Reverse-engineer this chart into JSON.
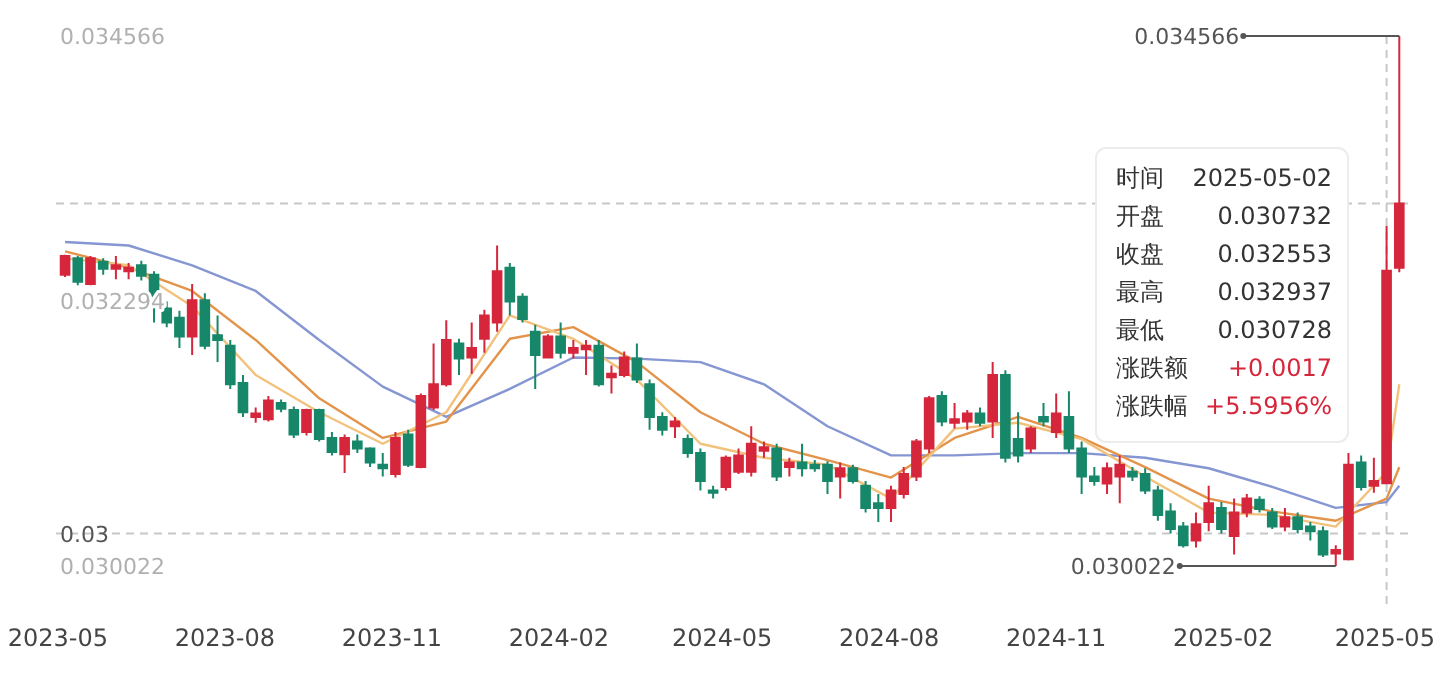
{
  "chart_data": {
    "type": "candlestick",
    "x": [
      "2023-05-05",
      "2023-05-12",
      "2023-05-19",
      "2023-05-26",
      "2023-06-02",
      "2023-06-09",
      "2023-06-16",
      "2023-06-23",
      "2023-06-30",
      "2023-07-07",
      "2023-07-14",
      "2023-07-21",
      "2023-07-28",
      "2023-08-04",
      "2023-08-11",
      "2023-08-18",
      "2023-08-25",
      "2023-09-01",
      "2023-09-08",
      "2023-09-15",
      "2023-09-22",
      "2023-09-29",
      "2023-10-06",
      "2023-10-13",
      "2023-10-20",
      "2023-10-27",
      "2023-11-03",
      "2023-11-10",
      "2023-11-17",
      "2023-11-24",
      "2023-12-01",
      "2023-12-08",
      "2023-12-15",
      "2023-12-22",
      "2023-12-29",
      "2024-01-05",
      "2024-01-12",
      "2024-01-19",
      "2024-01-26",
      "2024-02-02",
      "2024-02-09",
      "2024-02-16",
      "2024-02-23",
      "2024-03-01",
      "2024-03-08",
      "2024-03-15",
      "2024-03-22",
      "2024-03-29",
      "2024-04-05",
      "2024-04-12",
      "2024-04-19",
      "2024-04-26",
      "2024-05-03",
      "2024-05-10",
      "2024-05-17",
      "2024-05-24",
      "2024-05-31",
      "2024-06-07",
      "2024-06-14",
      "2024-06-21",
      "2024-06-28",
      "2024-07-05",
      "2024-07-12",
      "2024-07-19",
      "2024-07-26",
      "2024-08-02",
      "2024-08-09",
      "2024-08-16",
      "2024-08-23",
      "2024-08-30",
      "2024-09-06",
      "2024-09-13",
      "2024-09-20",
      "2024-09-27",
      "2024-10-04",
      "2024-10-11",
      "2024-10-18",
      "2024-10-25",
      "2024-11-01",
      "2024-11-08",
      "2024-11-15",
      "2024-11-22",
      "2024-11-29",
      "2024-12-06",
      "2024-12-13",
      "2024-12-20",
      "2024-12-27",
      "2025-01-03",
      "2025-01-10",
      "2025-01-17",
      "2025-01-24",
      "2025-01-31",
      "2025-02-07",
      "2025-02-14",
      "2025-02-21",
      "2025-02-28",
      "2025-03-07",
      "2025-03-14",
      "2025-03-21",
      "2025-03-28",
      "2025-04-04",
      "2025-04-11",
      "2025-04-18",
      "2025-04-25",
      "2025-05-02",
      "2025-05-09"
    ],
    "ohlc": [
      [
        0.03252,
        0.03269,
        0.0325,
        0.03268
      ],
      [
        0.03266,
        0.03268,
        0.03243,
        0.03246
      ],
      [
        0.03244,
        0.03268,
        0.03243,
        0.03266
      ],
      [
        0.03263,
        0.03266,
        0.03252,
        0.03257
      ],
      [
        0.03257,
        0.03268,
        0.03248,
        0.0326
      ],
      [
        0.03255,
        0.03262,
        0.03248,
        0.03258
      ],
      [
        0.0326,
        0.03264,
        0.03247,
        0.03251
      ],
      [
        0.03252,
        0.03255,
        0.03211,
        0.03225
      ],
      [
        0.03223,
        0.03229,
        0.03207,
        0.03211
      ],
      [
        0.03215,
        0.03221,
        0.03189,
        0.03199
      ],
      [
        0.03199,
        0.03244,
        0.03183,
        0.0323
      ],
      [
        0.0323,
        0.03236,
        0.03188,
        0.03191
      ],
      [
        0.032,
        0.03217,
        0.03177,
        0.03196
      ],
      [
        0.03191,
        0.03196,
        0.03154,
        0.03158
      ],
      [
        0.03159,
        0.03166,
        0.0313,
        0.03134
      ],
      [
        0.0313,
        0.03138,
        0.03125,
        0.03133
      ],
      [
        0.03128,
        0.03148,
        0.03126,
        0.03144
      ],
      [
        0.03142,
        0.03145,
        0.03134,
        0.03137
      ],
      [
        0.03136,
        0.03139,
        0.03112,
        0.03115
      ],
      [
        0.03117,
        0.03137,
        0.03114,
        0.03136
      ],
      [
        0.03136,
        0.03137,
        0.03109,
        0.03111
      ],
      [
        0.03112,
        0.03117,
        0.03097,
        0.031
      ],
      [
        0.03098,
        0.03115,
        0.03082,
        0.03112
      ],
      [
        0.03109,
        0.03115,
        0.03099,
        0.03103
      ],
      [
        0.03103,
        0.03104,
        0.03087,
        0.03091
      ],
      [
        0.03089,
        0.03099,
        0.03079,
        0.03086
      ],
      [
        0.03081,
        0.03117,
        0.03078,
        0.03112
      ],
      [
        0.03115,
        0.03119,
        0.03087,
        0.03089
      ],
      [
        0.03087,
        0.0315,
        0.03086,
        0.03148
      ],
      [
        0.03138,
        0.03193,
        0.03136,
        0.03158
      ],
      [
        0.03158,
        0.03213,
        0.03156,
        0.03196
      ],
      [
        0.03193,
        0.03197,
        0.03166,
        0.0318
      ],
      [
        0.03181,
        0.03211,
        0.03167,
        0.03189
      ],
      [
        0.03197,
        0.03222,
        0.03185,
        0.03217
      ],
      [
        0.03211,
        0.03277,
        0.03203,
        0.03255
      ],
      [
        0.03258,
        0.03262,
        0.03217,
        0.03229
      ],
      [
        0.03233,
        0.03236,
        0.03211,
        0.03214
      ],
      [
        0.03203,
        0.03209,
        0.03154,
        0.03183
      ],
      [
        0.03181,
        0.03201,
        0.0318,
        0.03199
      ],
      [
        0.03199,
        0.03211,
        0.0318,
        0.03185
      ],
      [
        0.03185,
        0.03196,
        0.0318,
        0.03189
      ],
      [
        0.03188,
        0.03196,
        0.03166,
        0.03191
      ],
      [
        0.03191,
        0.03196,
        0.03156,
        0.03158
      ],
      [
        0.03164,
        0.03174,
        0.0315,
        0.03167
      ],
      [
        0.03166,
        0.03186,
        0.03164,
        0.03181
      ],
      [
        0.0318,
        0.03193,
        0.03159,
        0.03162
      ],
      [
        0.03158,
        0.03162,
        0.03119,
        0.0313
      ],
      [
        0.0313,
        0.03134,
        0.03114,
        0.03119
      ],
      [
        0.03122,
        0.0313,
        0.03112,
        0.03126
      ],
      [
        0.03111,
        0.03115,
        0.03095,
        0.03099
      ],
      [
        0.03099,
        0.03103,
        0.03067,
        0.03075
      ],
      [
        0.03067,
        0.03071,
        0.0306,
        0.03065
      ],
      [
        0.0307,
        0.03097,
        0.03067,
        0.03095
      ],
      [
        0.03083,
        0.03103,
        0.03081,
        0.03097
      ],
      [
        0.03083,
        0.03122,
        0.03079,
        0.03107
      ],
      [
        0.03101,
        0.03109,
        0.03095,
        0.03104
      ],
      [
        0.03103,
        0.03107,
        0.03075,
        0.03079
      ],
      [
        0.03087,
        0.03095,
        0.03079,
        0.03091
      ],
      [
        0.03091,
        0.03107,
        0.03079,
        0.03086
      ],
      [
        0.03089,
        0.03093,
        0.03083,
        0.03086
      ],
      [
        0.03089,
        0.03092,
        0.03064,
        0.03075
      ],
      [
        0.03079,
        0.03091,
        0.0306,
        0.03086
      ],
      [
        0.03086,
        0.03089,
        0.03073,
        0.03075
      ],
      [
        0.03071,
        0.03075,
        0.03048,
        0.03052
      ],
      [
        0.03056,
        0.03064,
        0.0304,
        0.03052
      ],
      [
        0.03052,
        0.03071,
        0.0304,
        0.03067
      ],
      [
        0.03064,
        0.03087,
        0.0306,
        0.03081
      ],
      [
        0.03079,
        0.03111,
        0.03075,
        0.03109
      ],
      [
        0.03103,
        0.03148,
        0.03099,
        0.03146
      ],
      [
        0.03148,
        0.03152,
        0.03122,
        0.03126
      ],
      [
        0.03125,
        0.03142,
        0.0312,
        0.03128
      ],
      [
        0.03126,
        0.03136,
        0.03119,
        0.03133
      ],
      [
        0.03133,
        0.03138,
        0.03122,
        0.03125
      ],
      [
        0.03126,
        0.03177,
        0.03112,
        0.03166
      ],
      [
        0.03166,
        0.0317,
        0.03091,
        0.03095
      ],
      [
        0.03111,
        0.03134,
        0.03091,
        0.03097
      ],
      [
        0.03103,
        0.03122,
        0.03099,
        0.0312
      ],
      [
        0.0313,
        0.03142,
        0.03122,
        0.03126
      ],
      [
        0.03117,
        0.0315,
        0.03112,
        0.03133
      ],
      [
        0.0313,
        0.03152,
        0.03099,
        0.03103
      ],
      [
        0.03103,
        0.03109,
        0.03064,
        0.03079
      ],
      [
        0.03079,
        0.03087,
        0.03071,
        0.03075
      ],
      [
        0.03073,
        0.03091,
        0.03064,
        0.03086
      ],
      [
        0.03079,
        0.03097,
        0.03056,
        0.03089
      ],
      [
        0.03083,
        0.03087,
        0.03075,
        0.03079
      ],
      [
        0.03081,
        0.03086,
        0.03064,
        0.03067
      ],
      [
        0.03067,
        0.03071,
        0.03041,
        0.03046
      ],
      [
        0.03049,
        0.03056,
        0.0303,
        0.03034
      ],
      [
        0.03036,
        0.0304,
        0.03018,
        0.0302
      ],
      [
        0.03024,
        0.03048,
        0.03018,
        0.03038
      ],
      [
        0.0304,
        0.03071,
        0.03032,
        0.03056
      ],
      [
        0.03052,
        0.03057,
        0.0303,
        0.03034
      ],
      [
        0.03028,
        0.0306,
        0.03012,
        0.03048
      ],
      [
        0.03048,
        0.03064,
        0.03044,
        0.0306
      ],
      [
        0.03059,
        0.03062,
        0.03048,
        0.03051
      ],
      [
        0.03048,
        0.03052,
        0.03034,
        0.03036
      ],
      [
        0.03036,
        0.03052,
        0.03032,
        0.03044
      ],
      [
        0.03044,
        0.03048,
        0.0303,
        0.03034
      ],
      [
        0.03036,
        0.0304,
        0.03024,
        0.03032
      ],
      [
        0.03032,
        0.03036,
        0.0301,
        0.03012
      ],
      [
        0.03013,
        0.0302,
        0.030022,
        0.03016
      ],
      [
        0.03008,
        0.03099,
        0.03007,
        0.03089
      ],
      [
        0.03091,
        0.03097,
        0.03067,
        0.0307
      ],
      [
        0.03071,
        0.03095,
        0.03065,
        0.03075
      ],
      [
        0.030732,
        0.032937,
        0.030728,
        0.032553
      ],
      [
        0.03258,
        0.034566,
        0.03254,
        0.03313
      ]
    ],
    "colors": [
      "#d6263b",
      "#17876a",
      "#d6263b",
      "#17876a",
      "#d6263b",
      "#d6263b",
      "#17876a",
      "#17876a",
      "#17876a",
      "#17876a",
      "#d6263b",
      "#17876a",
      "#17876a",
      "#17876a",
      "#17876a",
      "#d6263b",
      "#d6263b",
      "#17876a",
      "#17876a",
      "#d6263b",
      "#17876a",
      "#17876a",
      "#d6263b",
      "#17876a",
      "#17876a",
      "#17876a",
      "#d6263b",
      "#17876a",
      "#d6263b",
      "#d6263b",
      "#d6263b",
      "#17876a",
      "#d6263b",
      "#d6263b",
      "#d6263b",
      "#17876a",
      "#17876a",
      "#17876a",
      "#d6263b",
      "#17876a",
      "#d6263b",
      "#d6263b",
      "#17876a",
      "#d6263b",
      "#d6263b",
      "#17876a",
      "#17876a",
      "#17876a",
      "#d6263b",
      "#17876a",
      "#17876a",
      "#17876a",
      "#d6263b",
      "#d6263b",
      "#d6263b",
      "#d6263b",
      "#17876a",
      "#d6263b",
      "#17876a",
      "#17876a",
      "#17876a",
      "#d6263b",
      "#17876a",
      "#17876a",
      "#17876a",
      "#d6263b",
      "#d6263b",
      "#d6263b",
      "#d6263b",
      "#17876a",
      "#d6263b",
      "#d6263b",
      "#17876a",
      "#d6263b",
      "#17876a",
      "#17876a",
      "#d6263b",
      "#17876a",
      "#d6263b",
      "#17876a",
      "#17876a",
      "#17876a",
      "#d6263b",
      "#d6263b",
      "#17876a",
      "#17876a",
      "#17876a",
      "#17876a",
      "#17876a",
      "#d6263b",
      "#d6263b",
      "#17876a",
      "#d6263b",
      "#d6263b",
      "#17876a",
      "#17876a",
      "#d6263b",
      "#17876a",
      "#17876a",
      "#17876a",
      "#d6263b",
      "#d6263b",
      "#17876a",
      "#d6263b",
      "#d6263b",
      "#d6263b"
    ],
    "series": [
      {
        "type": "line",
        "color": "#8596d2",
        "x": [
          "2023-05-05",
          "2023-06-09",
          "2023-07-14",
          "2023-08-18",
          "2023-09-22",
          "2023-10-27",
          "2023-12-01",
          "2024-01-05",
          "2024-02-09",
          "2024-03-15",
          "2024-04-19",
          "2024-05-24",
          "2024-06-28",
          "2024-08-02",
          "2024-09-06",
          "2024-10-11",
          "2024-11-15",
          "2024-12-20",
          "2025-01-24",
          "2025-02-28",
          "2025-04-04",
          "2025-05-02",
          "2025-05-09"
        ],
        "values": [
          0.0328,
          0.03277,
          0.0326,
          0.03238,
          0.03196,
          0.03156,
          0.0313,
          0.03154,
          0.03181,
          0.0318,
          0.03177,
          0.03158,
          0.03122,
          0.03097,
          0.03097,
          0.03099,
          0.03099,
          0.03095,
          0.03086,
          0.0307,
          0.03052,
          0.03057,
          0.03071
        ]
      },
      {
        "type": "line",
        "color": "#e3944a",
        "x": [
          "2023-05-05",
          "2023-06-09",
          "2023-07-14",
          "2023-08-18",
          "2023-09-22",
          "2023-10-27",
          "2023-12-01",
          "2024-01-05",
          "2024-02-09",
          "2024-03-15",
          "2024-04-19",
          "2024-05-24",
          "2024-06-28",
          "2024-08-02",
          "2024-09-06",
          "2024-10-11",
          "2024-11-15",
          "2024-12-20",
          "2025-01-24",
          "2025-02-28",
          "2025-04-04",
          "2025-05-02",
          "2025-05-09"
        ],
        "values": [
          0.03272,
          0.03258,
          0.03238,
          0.03196,
          0.03146,
          0.03112,
          0.03126,
          0.03197,
          0.03207,
          0.03177,
          0.03134,
          0.03107,
          0.03093,
          0.03078,
          0.03112,
          0.0313,
          0.03112,
          0.03087,
          0.0306,
          0.03049,
          0.03041,
          0.0306,
          0.03087
        ]
      },
      {
        "type": "line",
        "color": "#f2c27c",
        "x": [
          "2023-05-05",
          "2023-06-09",
          "2023-07-14",
          "2023-08-18",
          "2023-09-22",
          "2023-10-27",
          "2023-12-01",
          "2024-01-05",
          "2024-02-09",
          "2024-03-15",
          "2024-04-19",
          "2024-05-24",
          "2024-06-28",
          "2024-08-02",
          "2024-09-06",
          "2024-10-11",
          "2024-11-15",
          "2024-12-20",
          "2025-01-24",
          "2025-02-28",
          "2025-04-04",
          "2025-05-02",
          "2025-05-09"
        ],
        "values": [
          0.03266,
          0.0326,
          0.03225,
          0.03166,
          0.03134,
          0.03107,
          0.03134,
          0.03217,
          0.03197,
          0.03162,
          0.03107,
          0.03095,
          0.03089,
          0.0306,
          0.0312,
          0.03125,
          0.03111,
          0.03079,
          0.03048,
          0.03046,
          0.03036,
          0.03083,
          0.03158
        ]
      }
    ],
    "xlim": [
      "2023-04-30",
      "2025-05-16"
    ],
    "xticks": [
      "2023-05",
      "2023-08",
      "2023-11",
      "2024-02",
      "2024-05",
      "2024-08",
      "2024-11",
      "2025-02",
      "2025-05"
    ],
    "ylim": [
      0.030022,
      0.034566
    ],
    "yticks": [
      0.030022,
      0.032294,
      0.034566
    ],
    "ref_lines": [
      {
        "axis": "y",
        "value": 0.03313,
        "line_style": "dashed"
      },
      {
        "axis": "y",
        "value": 0.0303,
        "label": "0.03",
        "line_style": "dashed"
      },
      {
        "axis": "x",
        "value": "2025-05-02",
        "line_style": "dashed"
      }
    ],
    "annotations": [
      {
        "text": "0.034566",
        "x": "2025-05-09",
        "y": 0.034566
      },
      {
        "text": "0.030022",
        "x": "2025-04-04",
        "y": 0.030022
      },
      "时间",
      "2025-05-02",
      "开盘",
      "0.030732",
      "收盘",
      "0.032553",
      "最高",
      "0.032937",
      "最低",
      "0.030728",
      "涨跌额",
      "+0.0017",
      "涨跌幅",
      "+5.5956%"
    ],
    "grid": false
  }
}
